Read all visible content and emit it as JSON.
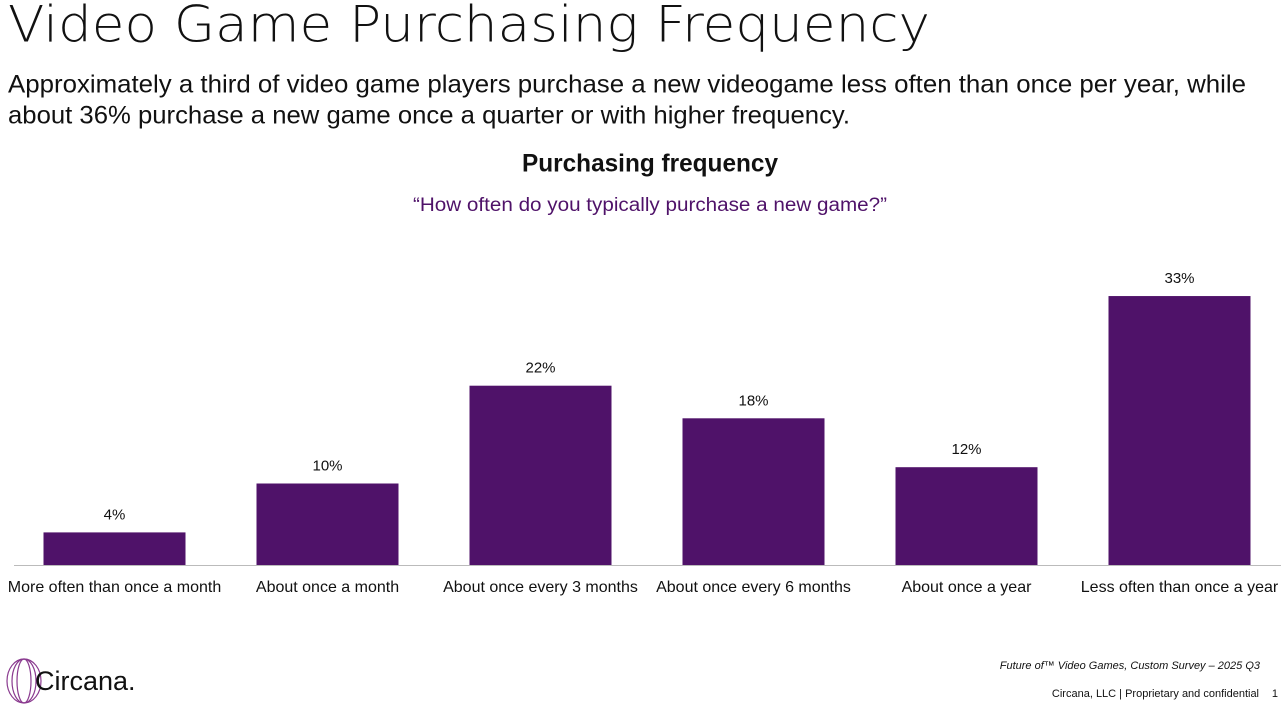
{
  "header": {
    "title": "Video Game Purchasing Frequency",
    "subtitle_lines": [
      "Approximately a third of video game players purchase a new videogame less often than once per year, while",
      "about 36% purchase a new game once a quarter or with higher frequency."
    ]
  },
  "chart_data": {
    "type": "bar",
    "title": "Purchasing frequency",
    "subtitle": "“How often do you typically purchase a new game?”",
    "categories": [
      "More often than once a month",
      "About once a month",
      "About once every 3 months",
      "About once every 6 months",
      "About once a year",
      "Less often than once a year"
    ],
    "values": [
      4,
      10,
      22,
      18,
      12,
      33
    ],
    "value_labels": [
      "4%",
      "10%",
      "22%",
      "18%",
      "12%",
      "33%"
    ],
    "color": "#4f1269"
  },
  "footer": {
    "source": "Future of™ Video Games, Custom Survey – 2025 Q3",
    "company": "Circana, LLC |  Proprietary and confidential",
    "page": "1",
    "logo": "Circana."
  }
}
